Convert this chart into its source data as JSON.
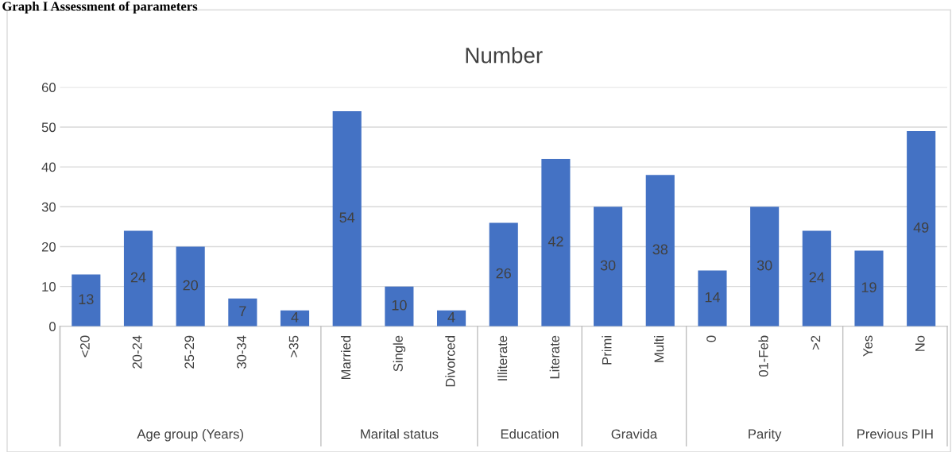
{
  "chart_data": {
    "type": "bar",
    "title": "Number",
    "categories": [
      "<20",
      "20-24",
      "25-29",
      "30-34",
      ">35",
      "Married",
      "Single",
      "Divorced",
      "Illiterate",
      "Literate",
      "Primi",
      "Multi",
      "0",
      "01-Feb",
      ">2",
      "Yes",
      "No"
    ],
    "values": [
      13,
      24,
      20,
      7,
      4,
      54,
      10,
      4,
      26,
      42,
      30,
      38,
      14,
      30,
      24,
      19,
      49
    ],
    "color": "#4472c4",
    "ylim": [
      0,
      60
    ],
    "yticks": [
      0,
      10,
      20,
      30,
      40,
      50,
      60
    ],
    "grid": "y",
    "data_labels": true,
    "legend": false,
    "annotations": [
      "Graph I Assessment of parameters",
      "Age group (Years)",
      "Marital status",
      "Education",
      "Gravida",
      "Parity",
      "Previous PIH"
    ]
  }
}
